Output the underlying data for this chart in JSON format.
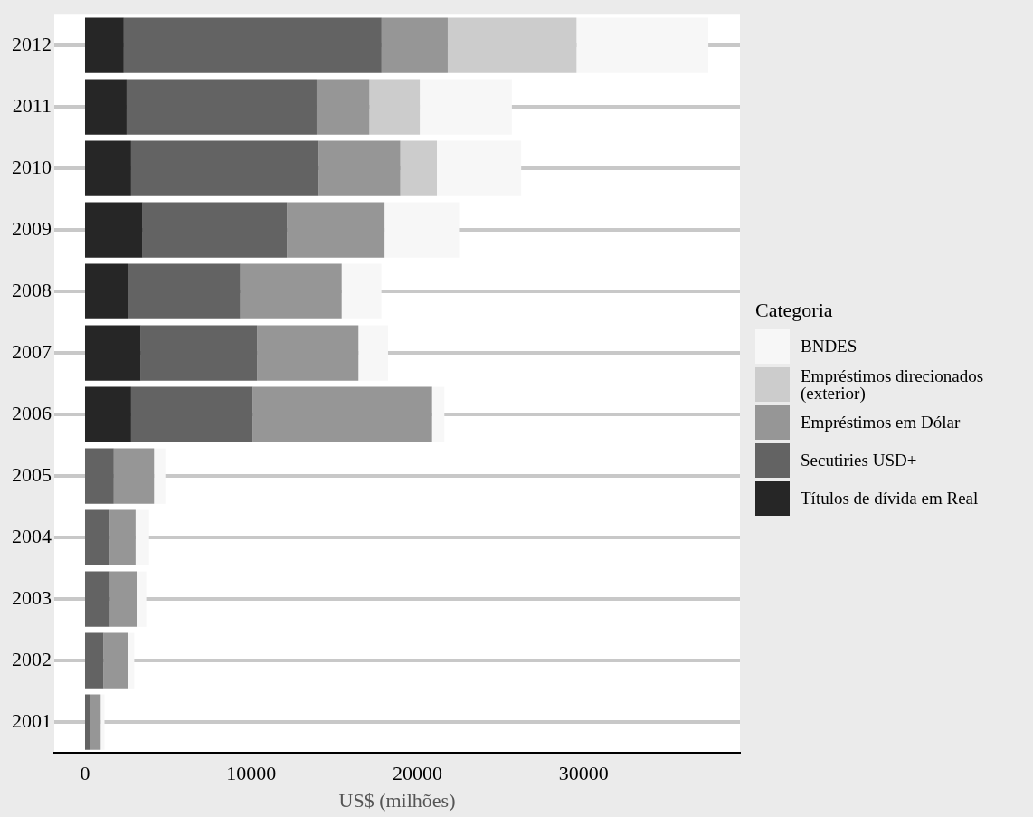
{
  "chart_data": {
    "type": "bar",
    "orientation": "horizontal",
    "stacked": true,
    "xlabel": "US$ (milhões)",
    "legend_title": "Categoria",
    "legend": "right",
    "grid": "y",
    "categories": [
      "2012",
      "2011",
      "2010",
      "2009",
      "2008",
      "2007",
      "2006",
      "2005",
      "2004",
      "2003",
      "2002",
      "2001"
    ],
    "xlim": [
      -1850,
      39400
    ],
    "xticks": [
      0,
      10000,
      20000,
      30000
    ],
    "series": [
      {
        "name": "Títulos de dívida em Real",
        "color": "#262626",
        "values": [
          2330,
          2500,
          2770,
          3460,
          2560,
          3350,
          2770,
          0,
          0,
          0,
          0,
          0
        ]
      },
      {
        "name": "Secutiries USD+",
        "color": "#636363",
        "values": [
          15510,
          11430,
          11290,
          8690,
          6780,
          7000,
          7320,
          1730,
          1480,
          1500,
          1110,
          310
        ]
      },
      {
        "name": "Empréstimos em Dólar",
        "color": "#969696",
        "values": [
          3980,
          3180,
          4910,
          5870,
          6100,
          6100,
          10790,
          2420,
          1560,
          1620,
          1450,
          630
        ]
      },
      {
        "name": "Empréstimos direcionados (exterior)",
        "color": "#cccccc",
        "values": [
          7750,
          3030,
          2200,
          0,
          0,
          0,
          0,
          0,
          0,
          0,
          0,
          0
        ]
      },
      {
        "name": "BNDES",
        "color": "#f7f7f7",
        "values": [
          7930,
          5540,
          5070,
          4480,
          2390,
          1780,
          740,
          680,
          810,
          560,
          400,
          230
        ]
      }
    ]
  }
}
